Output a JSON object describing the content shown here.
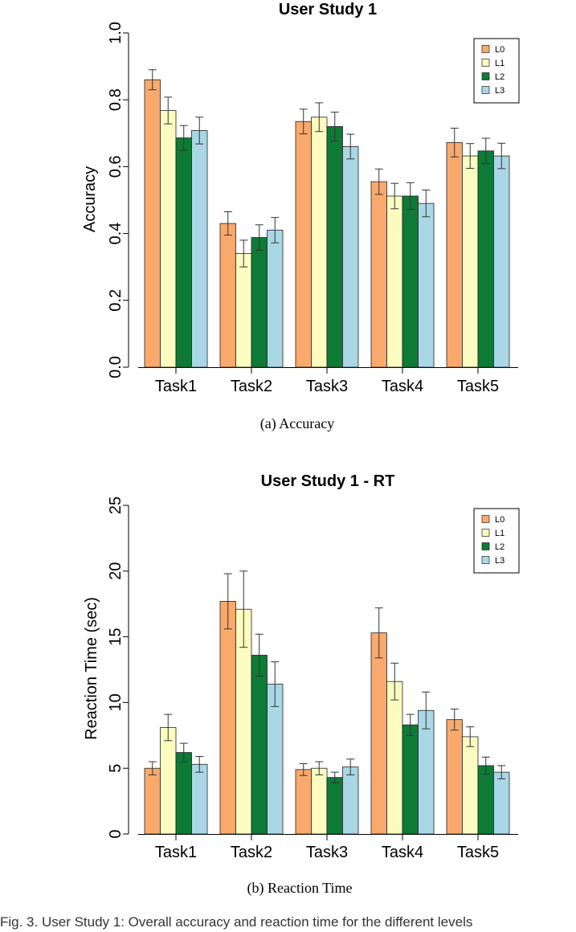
{
  "chart_data": [
    {
      "type": "bar",
      "title": "User  Study 1",
      "xlabel": "",
      "ylabel": "Accuracy",
      "categories": [
        "Task1",
        "Task2",
        "Task3",
        "Task4",
        "Task5"
      ],
      "ylim": [
        0,
        1.0
      ],
      "yticks": [
        "0.0",
        "0.2",
        "0.4",
        "0.6",
        "0.8",
        "1.0"
      ],
      "ytick_values": [
        0,
        0.2,
        0.4,
        0.6,
        0.8,
        1.0
      ],
      "legend_position": "top-right",
      "grid": false,
      "error_bars": true,
      "caption": "(a)  Accuracy",
      "series": [
        {
          "name": "L0",
          "color": "#F9A96B",
          "values": [
            0.86,
            0.43,
            0.735,
            0.555,
            0.672
          ],
          "error": [
            0.03,
            0.035,
            0.037,
            0.038,
            0.043
          ]
        },
        {
          "name": "L1",
          "color": "#FCFBC0",
          "values": [
            0.768,
            0.34,
            0.748,
            0.512,
            0.632
          ],
          "error": [
            0.04,
            0.04,
            0.043,
            0.038,
            0.037
          ]
        },
        {
          "name": "L2",
          "color": "#0D7B36",
          "values": [
            0.686,
            0.388,
            0.72,
            0.512,
            0.647
          ],
          "error": [
            0.037,
            0.038,
            0.043,
            0.04,
            0.038
          ]
        },
        {
          "name": "L3",
          "color": "#A9D7E6",
          "values": [
            0.708,
            0.41,
            0.66,
            0.49,
            0.632
          ],
          "error": [
            0.04,
            0.038,
            0.037,
            0.04,
            0.038
          ]
        }
      ]
    },
    {
      "type": "bar",
      "title": "User  Study 1 - RT",
      "xlabel": "",
      "ylabel": "Reaction Time (sec)",
      "categories": [
        "Task1",
        "Task2",
        "Task3",
        "Task4",
        "Task5"
      ],
      "ylim": [
        0,
        25
      ],
      "yticks": [
        "0",
        "5",
        "10",
        "15",
        "20",
        "25"
      ],
      "ytick_values": [
        0,
        5,
        10,
        15,
        20,
        25
      ],
      "legend_position": "top-right",
      "grid": false,
      "error_bars": true,
      "caption": "(b)  Reaction Time",
      "series": [
        {
          "name": "L0",
          "color": "#F9A96B",
          "values": [
            5.0,
            17.7,
            4.9,
            15.3,
            8.7
          ],
          "error": [
            0.5,
            2.1,
            0.45,
            1.9,
            0.8
          ]
        },
        {
          "name": "L1",
          "color": "#FCFBC0",
          "values": [
            8.1,
            17.1,
            5.0,
            11.6,
            7.4
          ],
          "error": [
            1.0,
            2.9,
            0.5,
            1.4,
            0.75
          ]
        },
        {
          "name": "L2",
          "color": "#0D7B36",
          "values": [
            6.2,
            13.6,
            4.3,
            8.3,
            5.2
          ],
          "error": [
            0.7,
            1.6,
            0.4,
            0.8,
            0.65
          ]
        },
        {
          "name": "L3",
          "color": "#A9D7E6",
          "values": [
            5.3,
            11.4,
            5.1,
            9.4,
            4.7
          ],
          "error": [
            0.6,
            1.7,
            0.6,
            1.4,
            0.5
          ]
        }
      ]
    }
  ],
  "footer_text": "Fig. 3.  User Study 1: Overall accuracy and reaction time for the different levels"
}
